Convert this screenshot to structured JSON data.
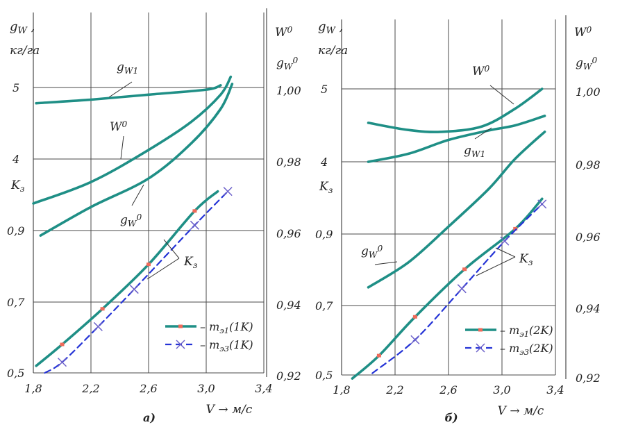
{
  "chart_data": [
    {
      "type": "line",
      "panel_label": "а)",
      "xlabel": "V → м/с",
      "x_ticks": [
        "1,8",
        "2,2",
        "2,6",
        "3,0",
        "3,4"
      ],
      "xlim": [
        1.8,
        3.4
      ],
      "left_axis": {
        "label_top": "g_W ,",
        "label_unit": "кг/га",
        "label_k": "K_з",
        "ticks_upper": [
          "5",
          "4"
        ],
        "ticks_lower": [
          "0,9",
          "0,7",
          "0,5"
        ],
        "scale": {
          "gridline_values": [
            5,
            4,
            0.9,
            0.7,
            0.5
          ]
        }
      },
      "right_axis": {
        "label_w": "W^0",
        "label_g": "g_W^0",
        "ticks": [
          "1,00",
          "0,98",
          "0,96",
          "0,94",
          "0,92"
        ],
        "range": [
          0.92,
          1.0
        ]
      },
      "grid": true,
      "series": [
        {
          "name": "g_W1",
          "axis": "g_W (кг/га)",
          "x": [
            1.82,
            2.2,
            2.6,
            3.0,
            3.1
          ],
          "values": [
            4.78,
            4.83,
            4.9,
            4.97,
            5.03
          ]
        },
        {
          "name": "W^0",
          "axis": "W^0",
          "x": [
            1.8,
            2.2,
            2.6,
            2.9,
            3.1,
            3.17
          ],
          "values": [
            0.9675,
            0.9735,
            0.9825,
            0.9905,
            0.998,
            1.003
          ]
        },
        {
          "name": "g_W^0",
          "axis": "g_W^0",
          "x": [
            1.85,
            2.2,
            2.6,
            2.9,
            3.1,
            3.18
          ],
          "values": [
            0.9585,
            0.9665,
            0.9745,
            0.9845,
            0.994,
            1.001
          ]
        },
        {
          "name": "m_э1(1K)",
          "axis": "K_з",
          "x": [
            1.82,
            2.0,
            2.28,
            2.6,
            2.92,
            3.08
          ],
          "values": [
            0.52,
            0.58,
            0.68,
            0.805,
            0.955,
            1.01
          ]
        },
        {
          "name": "m_э3(1K)",
          "axis": "K_з",
          "x": [
            1.88,
            2.0,
            2.25,
            2.5,
            2.92,
            3.15
          ],
          "values": [
            0.5,
            0.53,
            0.63,
            0.735,
            0.915,
            1.01
          ]
        }
      ],
      "annotations": [
        "g_W1",
        "W^0",
        "g_W^0",
        "K_з"
      ],
      "legend": [
        {
          "text": "– m_э1(1K)",
          "style": "solid-teal"
        },
        {
          "text": "– m_э3(1K)",
          "style": "dashed-blue-x"
        }
      ],
      "legend_placement": "bottom-right"
    },
    {
      "type": "line",
      "panel_label": "б)",
      "xlabel": "V → м/с",
      "x_ticks": [
        "1,8",
        "2,2",
        "2,6",
        "3,0",
        "3,4"
      ],
      "xlim": [
        1.8,
        3.4
      ],
      "left_axis": {
        "label_top": "g_W ,",
        "label_unit": "кг/га",
        "label_k": "K_з",
        "ticks_upper": [
          "5",
          "4"
        ],
        "ticks_lower": [
          "0,9",
          "0,7",
          "0,5"
        ],
        "scale": {
          "gridline_values": [
            5,
            4,
            0.9,
            0.7,
            0.5
          ]
        }
      },
      "right_axis": {
        "label_w": "W^0",
        "label_g": "g_W^0",
        "ticks": [
          "1,00",
          "0,98",
          "0,96",
          "0,94",
          "0,92"
        ],
        "range": [
          0.92,
          1.0
        ]
      },
      "grid": true,
      "series": [
        {
          "name": "g_W1",
          "axis": "g_W (кг/га)",
          "x": [
            2.0,
            2.3,
            2.6,
            2.9,
            3.1,
            3.32
          ],
          "values": [
            4.0,
            4.11,
            4.3,
            4.43,
            4.5,
            4.63
          ]
        },
        {
          "name": "W^0",
          "axis": "W^0",
          "x": [
            2.0,
            2.3,
            2.55,
            2.85,
            3.1,
            3.3
          ],
          "values": [
            0.9905,
            0.9885,
            0.988,
            0.9895,
            0.9945,
            1.0
          ]
        },
        {
          "name": "g_W^0",
          "axis": "g_W^0",
          "x": [
            2.0,
            2.3,
            2.6,
            2.9,
            3.1,
            3.32
          ],
          "values": [
            0.9445,
            0.9515,
            0.9615,
            0.972,
            0.9805,
            0.988
          ]
        },
        {
          "name": "m_э1(2K)",
          "axis": "K_з",
          "x": [
            1.88,
            2.08,
            2.35,
            2.72,
            3.1,
            3.3
          ],
          "values": [
            0.49,
            0.555,
            0.665,
            0.8,
            0.915,
            1.0
          ]
        },
        {
          "name": "m_э3(2K)",
          "axis": "K_з",
          "x": [
            2.03,
            2.35,
            2.7,
            3.02,
            3.3
          ],
          "values": [
            0.505,
            0.6,
            0.745,
            0.88,
            0.985
          ]
        }
      ],
      "annotations": [
        "W^0",
        "g_W1",
        "g_W^0",
        "K_з"
      ],
      "legend": [
        {
          "text": "– m_э1(2K)",
          "style": "solid-teal"
        },
        {
          "text": "– m_э3(2K)",
          "style": "dashed-blue-x"
        }
      ],
      "legend_placement": "bottom-right"
    }
  ],
  "colors": {
    "teal": "#1f8f86",
    "blue": "#2433d6",
    "marker": "#f06a5a",
    "grid": "#4a4a4a"
  }
}
